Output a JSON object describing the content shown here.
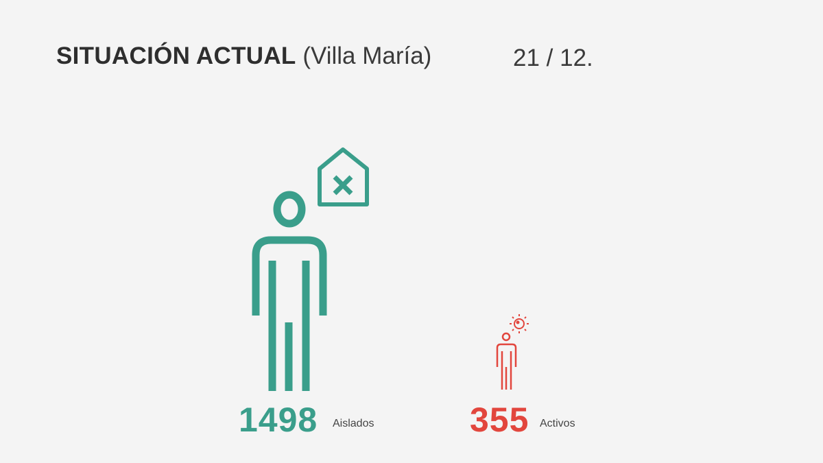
{
  "header": {
    "title_bold": "SITUACIÓN ACTUAL",
    "title_sub": "(Villa María)",
    "date": "21 / 12."
  },
  "stats": [
    {
      "value": "1498",
      "label": "Aislados",
      "color": "#3a9e8b",
      "icon": "person-isolated-house-icon"
    },
    {
      "value": "355",
      "label": "Activos",
      "color": "#e2463d",
      "icon": "person-virus-icon"
    }
  ]
}
